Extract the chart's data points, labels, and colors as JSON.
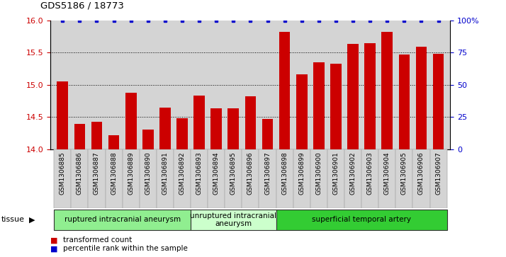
{
  "title": "GDS5186 / 18773",
  "samples": [
    "GSM1306885",
    "GSM1306886",
    "GSM1306887",
    "GSM1306888",
    "GSM1306889",
    "GSM1306890",
    "GSM1306891",
    "GSM1306892",
    "GSM1306893",
    "GSM1306894",
    "GSM1306895",
    "GSM1306896",
    "GSM1306897",
    "GSM1306898",
    "GSM1306899",
    "GSM1306900",
    "GSM1306901",
    "GSM1306902",
    "GSM1306903",
    "GSM1306904",
    "GSM1306905",
    "GSM1306906",
    "GSM1306907"
  ],
  "values": [
    15.05,
    14.39,
    14.43,
    14.22,
    14.88,
    14.3,
    14.65,
    14.48,
    14.83,
    14.63,
    14.63,
    14.82,
    14.47,
    15.82,
    15.16,
    15.35,
    15.33,
    15.64,
    15.65,
    15.82,
    15.47,
    15.59,
    15.48
  ],
  "bar_color": "#cc0000",
  "dot_color": "#0000cc",
  "ylim_left": [
    14.0,
    16.0
  ],
  "ylim_right": [
    0,
    100
  ],
  "yticks_left": [
    14.0,
    14.5,
    15.0,
    15.5,
    16.0
  ],
  "yticks_right": [
    0,
    25,
    50,
    75,
    100
  ],
  "grid_values": [
    14.5,
    15.0,
    15.5
  ],
  "tissue_groups": [
    {
      "label": "ruptured intracranial aneurysm",
      "start": 0,
      "end": 8,
      "color": "#90EE90"
    },
    {
      "label": "unruptured intracranial\naneurysm",
      "start": 8,
      "end": 13,
      "color": "#ccffcc"
    },
    {
      "label": "superficial temporal artery",
      "start": 13,
      "end": 23,
      "color": "#33cc33"
    }
  ],
  "tissue_label": "tissue",
  "legend_items": [
    {
      "label": "transformed count",
      "color": "#cc0000"
    },
    {
      "label": "percentile rank within the sample",
      "color": "#0000cc"
    }
  ],
  "bg_color": "#d4d4d4",
  "fig_bg": "#ffffff"
}
